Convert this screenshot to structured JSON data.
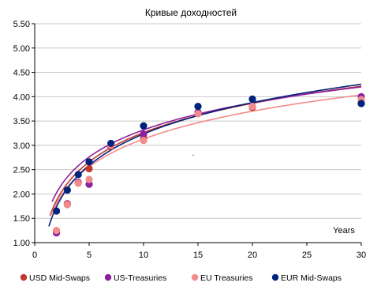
{
  "chart_data": {
    "type": "scatter",
    "title": "Кривые доходностей",
    "xlabel": "Years",
    "ylabel": "",
    "xlim": [
      0,
      30
    ],
    "ylim": [
      1.0,
      5.5
    ],
    "x_ticks": [
      "0",
      "5",
      "10",
      "15",
      "20",
      "25",
      "30"
    ],
    "y_ticks": [
      "1.00",
      "1.50",
      "2.00",
      "2.50",
      "3.00",
      "3.50",
      "4.00",
      "4.50",
      "5.00",
      "5.50"
    ],
    "grid": "horizontal",
    "legend_position": "bottom",
    "series": [
      {
        "name": "USD Mid-Swaps",
        "color": "#c0392b",
        "x": [
          2,
          3,
          4,
          5,
          7,
          10,
          15,
          20,
          30
        ],
        "y": [
          1.22,
          1.8,
          2.23,
          2.52,
          2.97,
          3.14,
          3.65,
          3.78,
          3.87
        ],
        "trend": {
          "a": 1.263,
          "b": 0.868,
          "xmin": 1.4
        }
      },
      {
        "name": "US-Treasuries",
        "color": "#8e1f9e",
        "x": [
          2,
          3,
          4,
          5,
          7,
          10,
          15,
          20,
          30
        ],
        "y": [
          1.2,
          1.79,
          2.24,
          2.2,
          2.99,
          3.23,
          3.68,
          3.8,
          4.0
        ],
        "trend": {
          "a": 1.466,
          "b": 0.804,
          "xmin": 1.6
        }
      },
      {
        "name": "EU Treasuries",
        "color": "#f28b8b",
        "x": [
          2,
          3,
          4,
          5,
          7,
          10,
          15,
          20,
          30
        ],
        "y": [
          1.25,
          1.78,
          2.22,
          2.3,
          3.0,
          3.1,
          3.65,
          3.8,
          3.94
        ],
        "trend": {
          "a": 1.233,
          "b": 0.824,
          "xmin": 1.5
        }
      },
      {
        "name": "EUR Mid-Swaps",
        "color": "#00237b",
        "x": [
          2,
          3,
          4,
          5,
          7,
          10,
          15,
          20,
          30
        ],
        "y": [
          1.65,
          2.08,
          2.4,
          2.66,
          3.04,
          3.4,
          3.8,
          3.95,
          3.86
        ],
        "trend": {
          "a": 1.092,
          "b": 0.93,
          "xmin": 1.3
        }
      }
    ]
  }
}
